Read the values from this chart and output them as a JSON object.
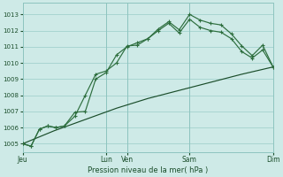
{
  "background_color": "#ceeae7",
  "grid_color": "#a8d5d1",
  "line_color1": "#2d6e3e",
  "line_color2": "#2d6e3e",
  "line_color3": "#1a4d2a",
  "xlabel": "Pression niveau de la mer( hPa )",
  "ylim": [
    1004.5,
    1013.7
  ],
  "yticks": [
    1005,
    1006,
    1007,
    1008,
    1009,
    1010,
    1011,
    1012,
    1013
  ],
  "xtick_labels": [
    "Jeu",
    "Lun",
    "Ven",
    "Sam",
    "Dim"
  ],
  "xtick_positions": [
    0,
    4,
    5,
    8,
    12
  ],
  "vlines": [
    0,
    4,
    5,
    8,
    12
  ],
  "series1_x": [
    0,
    0.4,
    0.8,
    1.2,
    1.6,
    2.0,
    2.5,
    3.0,
    3.5,
    4.0,
    4.5,
    5.0,
    5.5,
    6.0,
    6.5,
    7.0,
    7.5,
    8.0,
    8.5,
    9.0,
    9.5,
    10.0,
    10.5,
    11.0,
    11.5,
    12.0
  ],
  "series1_y": [
    1005.0,
    1004.85,
    1005.9,
    1006.1,
    1006.0,
    1006.1,
    1006.7,
    1008.0,
    1009.3,
    1009.5,
    1010.0,
    1011.05,
    1011.1,
    1011.5,
    1012.1,
    1012.55,
    1012.05,
    1013.0,
    1012.65,
    1012.45,
    1012.35,
    1011.8,
    1011.05,
    1010.45,
    1011.1,
    1009.75
  ],
  "series2_x": [
    0,
    0.4,
    0.8,
    1.2,
    1.6,
    2.0,
    2.5,
    3.0,
    3.5,
    4.0,
    4.5,
    5.0,
    5.5,
    6.0,
    6.5,
    7.0,
    7.5,
    8.0,
    8.5,
    9.0,
    9.5,
    10.0,
    10.5,
    11.0,
    11.5,
    12.0
  ],
  "series2_y": [
    1005.0,
    1004.85,
    1005.9,
    1006.1,
    1006.0,
    1006.1,
    1006.95,
    1007.0,
    1009.0,
    1009.4,
    1010.5,
    1011.0,
    1011.25,
    1011.5,
    1012.0,
    1012.45,
    1011.85,
    1012.7,
    1012.2,
    1012.0,
    1011.9,
    1011.5,
    1010.7,
    1010.3,
    1010.8,
    1009.75
  ],
  "series3_x": [
    0,
    1.5,
    3.0,
    4.5,
    6.0,
    7.5,
    9.0,
    10.5,
    12.0
  ],
  "series3_y": [
    1005.0,
    1005.8,
    1006.5,
    1007.2,
    1007.8,
    1008.3,
    1008.8,
    1009.3,
    1009.75
  ]
}
